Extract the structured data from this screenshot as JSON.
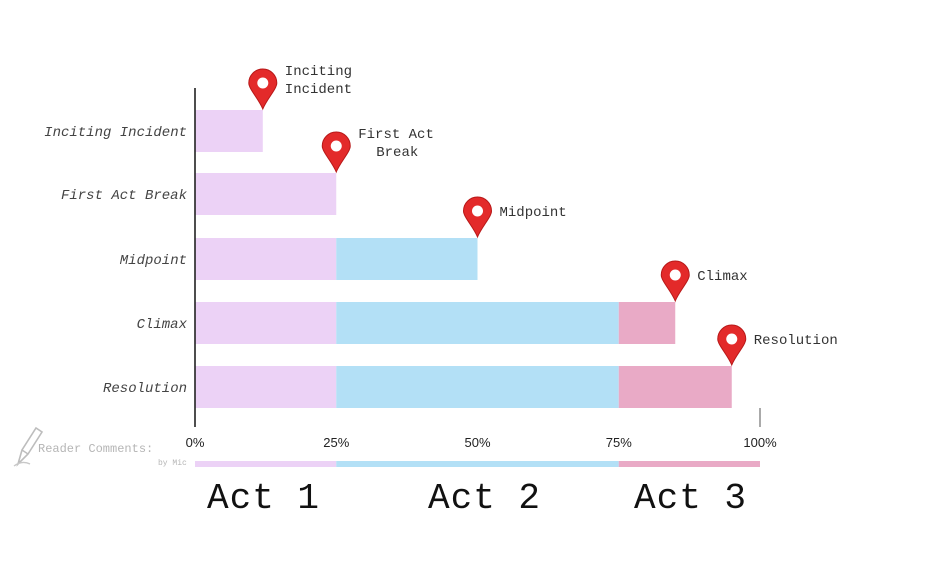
{
  "chart_data": {
    "type": "bar",
    "orientation": "horizontal",
    "stacked": true,
    "categories": [
      "Inciting Incident",
      "First Act Break",
      "Midpoint",
      "Climax",
      "Resolution"
    ],
    "series": [
      {
        "values": [
          12,
          25,
          25,
          25,
          25
        ]
      },
      {
        "values": [
          0,
          0,
          25,
          50,
          50
        ]
      },
      {
        "values": [
          0,
          0,
          0,
          10,
          20
        ]
      }
    ],
    "xlim": [
      0,
      100
    ],
    "x_ticks": [
      "0%",
      "25%",
      "50%",
      "75%",
      "100%"
    ],
    "grid": false,
    "markers": [
      {
        "label": "Inciting Incident",
        "lines": [
          "Inciting",
          "Incident"
        ],
        "value": 12
      },
      {
        "label": "First Act Break",
        "lines": [
          "First Act",
          "Break"
        ],
        "value": 25
      },
      {
        "label": "Midpoint",
        "lines": [
          "Midpoint"
        ],
        "value": 50
      },
      {
        "label": "Climax",
        "lines": [
          "Climax"
        ],
        "value": 85
      },
      {
        "label": "Resolution",
        "lines": [
          "Resolution"
        ],
        "value": 95
      }
    ],
    "acts": [
      {
        "label": "Act 1",
        "from": 0,
        "to": 25
      },
      {
        "label": "Act 2",
        "from": 25,
        "to": 75
      },
      {
        "label": "Act 3",
        "from": 75,
        "to": 100
      }
    ]
  },
  "colors": {
    "act1": "#ecd2f6",
    "act2": "#b3e0f6",
    "act3": "#e9aac6",
    "pin": "#e32a2a",
    "pin_dark": "#b81818",
    "axis": "#222222"
  },
  "icons": {
    "marker": "map-pin-icon",
    "watermark": "pen-icon"
  },
  "watermark": {
    "text": "Reader Comments:",
    "by": "by Mic"
  }
}
